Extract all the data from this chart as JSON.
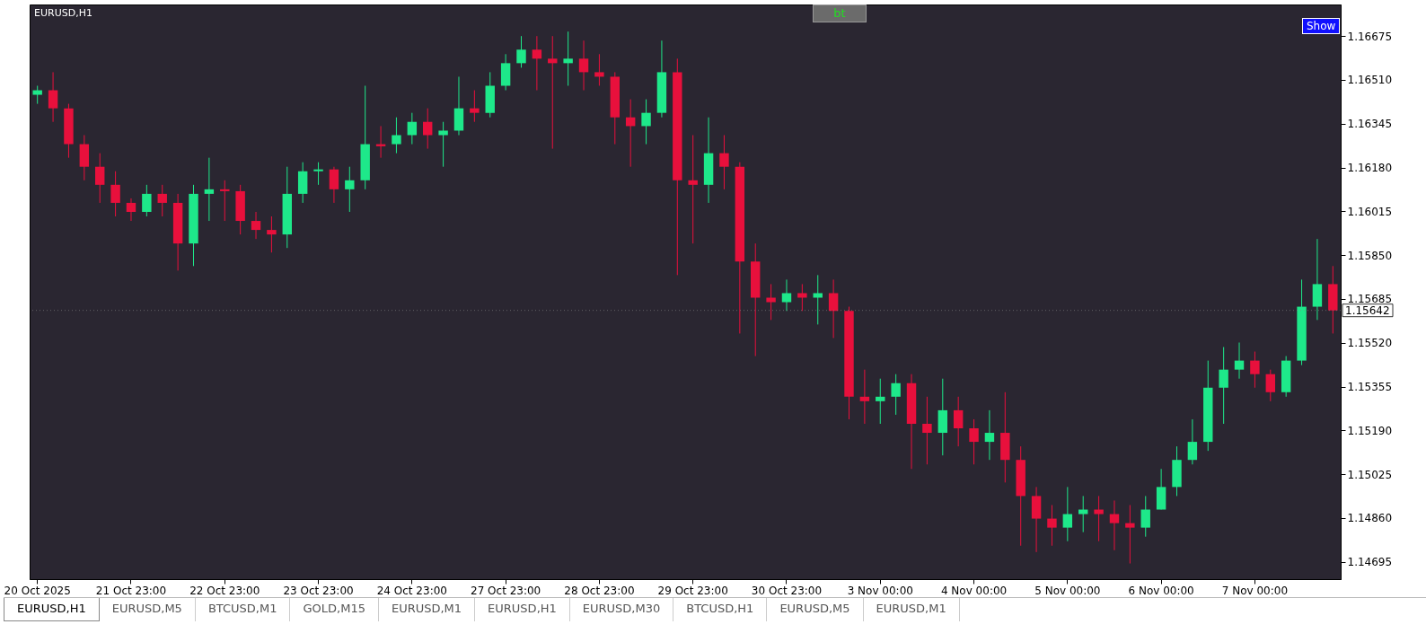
{
  "chart_data": {
    "type": "candlestick",
    "title": "EURUSD,H1",
    "categories": [
      "20 Oct 2025",
      null,
      null,
      null,
      null,
      null,
      "21 Oct 23:00",
      null,
      null,
      null,
      null,
      null,
      "22 Oct 23:00",
      null,
      null,
      null,
      null,
      null,
      "23 Oct 23:00",
      null,
      null,
      null,
      null,
      null,
      "24 Oct 23:00",
      null,
      null,
      null,
      null,
      null,
      "27 Oct 23:00",
      null,
      null,
      null,
      null,
      null,
      "28 Oct 23:00",
      null,
      null,
      null,
      null,
      null,
      "29 Oct 23:00",
      null,
      null,
      null,
      null,
      null,
      "30 Oct 23:00",
      null,
      null,
      null,
      null,
      null,
      "3 Nov 00:00",
      null,
      null,
      null,
      null,
      null,
      "4 Nov 00:00",
      null,
      null,
      null,
      null,
      null,
      "5 Nov 00:00",
      null,
      null,
      null,
      null,
      null,
      "6 Nov 00:00",
      null,
      null,
      null,
      null,
      null,
      "7 Nov 00:00",
      null,
      null,
      null,
      null,
      null
    ],
    "ohlc": [
      [
        1.16454,
        1.16488,
        1.1642,
        1.16471
      ],
      [
        1.16471,
        1.16539,
        1.16352,
        1.16403
      ],
      [
        1.16403,
        1.1642,
        1.16217,
        1.16268
      ],
      [
        1.16268,
        1.16302,
        1.16132,
        1.16183
      ],
      [
        1.16183,
        1.16234,
        1.16047,
        1.16115
      ],
      [
        1.16115,
        1.16166,
        1.15996,
        1.16047
      ],
      [
        1.16047,
        1.16064,
        1.15979,
        1.16013
      ],
      [
        1.16013,
        1.16115,
        1.15996,
        1.16081
      ],
      [
        1.16081,
        1.16115,
        1.15996,
        1.16047
      ],
      [
        1.16047,
        1.16081,
        1.15792,
        1.15894
      ],
      [
        1.15894,
        1.16115,
        1.15809,
        1.16081
      ],
      [
        1.16081,
        1.16217,
        1.15979,
        1.16098
      ],
      [
        1.16098,
        1.16132,
        1.15979,
        1.16091
      ],
      [
        1.16091,
        1.16115,
        1.15928,
        1.15979
      ],
      [
        1.15979,
        1.16013,
        1.15911,
        1.15945
      ],
      [
        1.15945,
        1.15996,
        1.1586,
        1.15928
      ],
      [
        1.15928,
        1.16183,
        1.15877,
        1.16081
      ],
      [
        1.16081,
        1.162,
        1.16047,
        1.16166
      ],
      [
        1.16166,
        1.162,
        1.16115,
        1.16173
      ],
      [
        1.16173,
        1.16183,
        1.16047,
        1.16098
      ],
      [
        1.16098,
        1.16183,
        1.16013,
        1.16132
      ],
      [
        1.16132,
        1.16488,
        1.16098,
        1.16268
      ],
      [
        1.16268,
        1.16336,
        1.16217,
        1.1626
      ],
      [
        1.16268,
        1.16369,
        1.16234,
        1.16302
      ],
      [
        1.16302,
        1.16386,
        1.16268,
        1.16352
      ],
      [
        1.16352,
        1.16403,
        1.16251,
        1.16302
      ],
      [
        1.16302,
        1.16352,
        1.16183,
        1.16319
      ],
      [
        1.16319,
        1.16522,
        1.16302,
        1.16403
      ],
      [
        1.16403,
        1.16471,
        1.16352,
        1.16386
      ],
      [
        1.16386,
        1.16539,
        1.16369,
        1.16488
      ],
      [
        1.16488,
        1.16607,
        1.16471,
        1.16573
      ],
      [
        1.16573,
        1.16675,
        1.16556,
        1.16624
      ],
      [
        1.16624,
        1.16675,
        1.16471,
        1.1659
      ],
      [
        1.1659,
        1.16675,
        1.16251,
        1.16573
      ],
      [
        1.16573,
        1.16692,
        1.16488,
        1.1659
      ],
      [
        1.1659,
        1.16658,
        1.16471,
        1.16539
      ],
      [
        1.16539,
        1.16607,
        1.16488,
        1.16522
      ],
      [
        1.16522,
        1.16539,
        1.16268,
        1.16369
      ],
      [
        1.16369,
        1.16437,
        1.16183,
        1.16336
      ],
      [
        1.16336,
        1.16437,
        1.16268,
        1.16386
      ],
      [
        1.16386,
        1.16658,
        1.16369,
        1.16539
      ],
      [
        1.16539,
        1.1659,
        1.15775,
        1.16132
      ],
      [
        1.16132,
        1.16302,
        1.15894,
        1.16115
      ],
      [
        1.16115,
        1.16369,
        1.16047,
        1.16234
      ],
      [
        1.16234,
        1.16302,
        1.16098,
        1.16183
      ],
      [
        1.16183,
        1.162,
        1.15555,
        1.15826
      ],
      [
        1.15826,
        1.15894,
        1.1547,
        1.1569
      ],
      [
        1.1569,
        1.15741,
        1.15606,
        1.15673
      ],
      [
        1.15673,
        1.15758,
        1.1564,
        1.15707
      ],
      [
        1.15707,
        1.15741,
        1.1564,
        1.1569
      ],
      [
        1.1569,
        1.15775,
        1.15589,
        1.15707
      ],
      [
        1.15707,
        1.15758,
        1.15538,
        1.1564
      ],
      [
        1.1564,
        1.15656,
        1.15232,
        1.15317
      ],
      [
        1.15317,
        1.15419,
        1.15215,
        1.153
      ],
      [
        1.153,
        1.15385,
        1.15215,
        1.15317
      ],
      [
        1.15317,
        1.15402,
        1.15249,
        1.15368
      ],
      [
        1.15368,
        1.15402,
        1.15045,
        1.15215
      ],
      [
        1.15215,
        1.15317,
        1.15062,
        1.15181
      ],
      [
        1.15181,
        1.15385,
        1.15096,
        1.15266
      ],
      [
        1.15266,
        1.15317,
        1.1513,
        1.15198
      ],
      [
        1.15198,
        1.15232,
        1.15062,
        1.15147
      ],
      [
        1.15147,
        1.15266,
        1.15079,
        1.15181
      ],
      [
        1.15181,
        1.15334,
        1.14994,
        1.15079
      ],
      [
        1.15079,
        1.1513,
        1.14756,
        1.14943
      ],
      [
        1.14943,
        1.14977,
        1.14732,
        1.14858
      ],
      [
        1.14858,
        1.14909,
        1.14756,
        1.14824
      ],
      [
        1.14824,
        1.14977,
        1.14773,
        1.14875
      ],
      [
        1.14875,
        1.14943,
        1.14807,
        1.14892
      ],
      [
        1.14892,
        1.14943,
        1.14773,
        1.14875
      ],
      [
        1.14875,
        1.14926,
        1.14739,
        1.14841
      ],
      [
        1.14841,
        1.14909,
        1.14689,
        1.14824
      ],
      [
        1.14824,
        1.14943,
        1.1479,
        1.14892
      ],
      [
        1.14892,
        1.15045,
        1.14892,
        1.14977
      ],
      [
        1.14977,
        1.1513,
        1.14943,
        1.15079
      ],
      [
        1.15079,
        1.15232,
        1.15062,
        1.15147
      ],
      [
        1.15147,
        1.15453,
        1.15113,
        1.15351
      ],
      [
        1.15351,
        1.15504,
        1.15215,
        1.15419
      ],
      [
        1.15419,
        1.15521,
        1.15385,
        1.15453
      ],
      [
        1.15453,
        1.15487,
        1.15351,
        1.15402
      ],
      [
        1.15402,
        1.15419,
        1.153,
        1.15334
      ],
      [
        1.15334,
        1.1547,
        1.15317,
        1.15453
      ],
      [
        1.15453,
        1.15758,
        1.15436,
        1.15656
      ],
      [
        1.15656,
        1.15911,
        1.15606,
        1.15741
      ],
      [
        1.15741,
        1.15809,
        1.15555,
        1.15642
      ]
    ],
    "colors": [
      "#1ee88a",
      "#e8103c",
      "#e8103c",
      "#e8103c",
      "#e8103c",
      "#e8103c",
      "#e8103c",
      "#1ee88a",
      "#e8103c",
      "#e8103c",
      "#1ee88a",
      "#1ee88a",
      "#e8103c",
      "#e8103c",
      "#e8103c",
      "#e8103c",
      "#1ee88a",
      "#1ee88a",
      "#1ee88a",
      "#e8103c",
      "#1ee88a",
      "#1ee88a",
      "#e8103c",
      "#1ee88a",
      "#1ee88a",
      "#e8103c",
      "#1ee88a",
      "#1ee88a",
      "#e8103c",
      "#1ee88a",
      "#1ee88a",
      "#1ee88a",
      "#e8103c",
      "#e8103c",
      "#1ee88a",
      "#e8103c",
      "#e8103c",
      "#e8103c",
      "#e8103c",
      "#1ee88a",
      "#1ee88a",
      "#e8103c",
      "#e8103c",
      "#1ee88a",
      "#e8103c",
      "#e8103c",
      "#e8103c",
      "#e8103c",
      "#1ee88a",
      "#e8103c",
      "#1ee88a",
      "#e8103c",
      "#e8103c",
      "#e8103c",
      "#1ee88a",
      "#1ee88a",
      "#e8103c",
      "#e8103c",
      "#1ee88a",
      "#e8103c",
      "#e8103c",
      "#1ee88a",
      "#e8103c",
      "#e8103c",
      "#e8103c",
      "#e8103c",
      "#1ee88a",
      "#1ee88a",
      "#e8103c",
      "#e8103c",
      "#e8103c",
      "#1ee88a",
      "#1ee88a",
      "#1ee88a",
      "#1ee88a",
      "#1ee88a",
      "#1ee88a",
      "#1ee88a",
      "#e8103c",
      "#e8103c",
      "#1ee88a",
      "#1ee88a",
      "#1ee88a",
      "#e8103c"
    ],
    "ylim": [
      1.1463,
      1.16794
    ],
    "yticks": [
      1.14695,
      {
        "value": 1.1486,
        "label": "1.14860"
      },
      1.15025,
      {
        "value": 1.1519,
        "label": "1.15190"
      },
      1.15355,
      {
        "value": 1.1552,
        "label": "1.15520"
      },
      1.15685,
      {
        "value": 1.1585,
        "label": "1.15850"
      },
      1.16015,
      {
        "value": 1.1618,
        "label": "1.16180"
      },
      1.16345,
      {
        "value": 1.1651,
        "label": "1.16510"
      },
      1.16675
    ],
    "ref_lines": [
      {
        "axis": "y",
        "value": 1.15642,
        "label": "1.15642"
      }
    ],
    "grid": false,
    "annotations": [
      "bt",
      "Show",
      "EURUSD,H1",
      "EURUSD,M5",
      "BTCUSD,M1",
      "GOLD,M15",
      "EURUSD,M1",
      "EURUSD,H1",
      "EURUSD,M30",
      "BTCUSD,H1",
      "EURUSD,M5",
      "EURUSD,M1"
    ]
  }
}
